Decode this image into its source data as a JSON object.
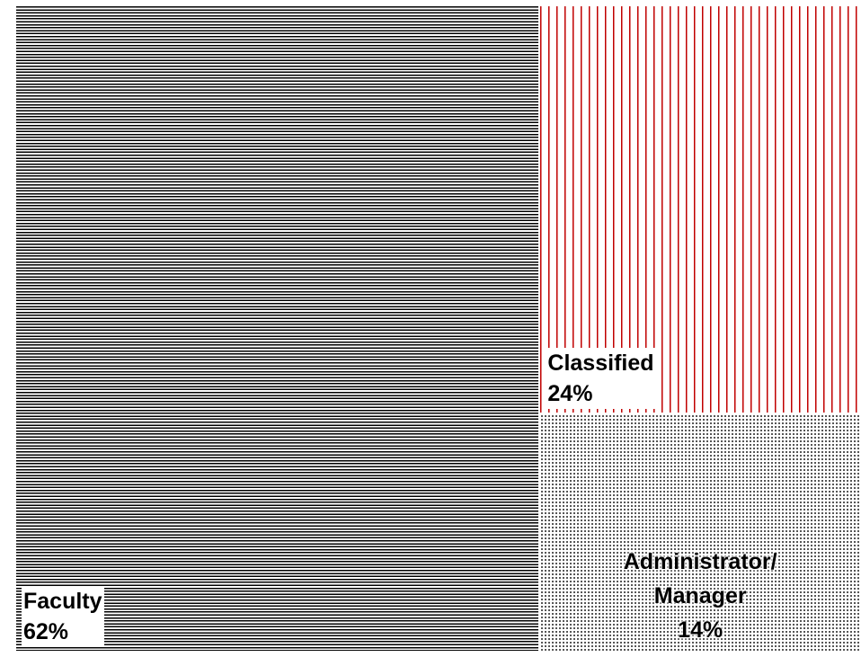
{
  "chart_data": {
    "type": "treemap",
    "categories": [
      "Faculty",
      "Classified",
      "Administrator/ Manager"
    ],
    "values": [
      62,
      24,
      14
    ],
    "value_labels": [
      "62%",
      "24%",
      "14%"
    ],
    "colors": [
      "#000000",
      "#c00000",
      "#000000"
    ],
    "patterns": [
      "horizontal",
      "vertical",
      "dots"
    ]
  }
}
